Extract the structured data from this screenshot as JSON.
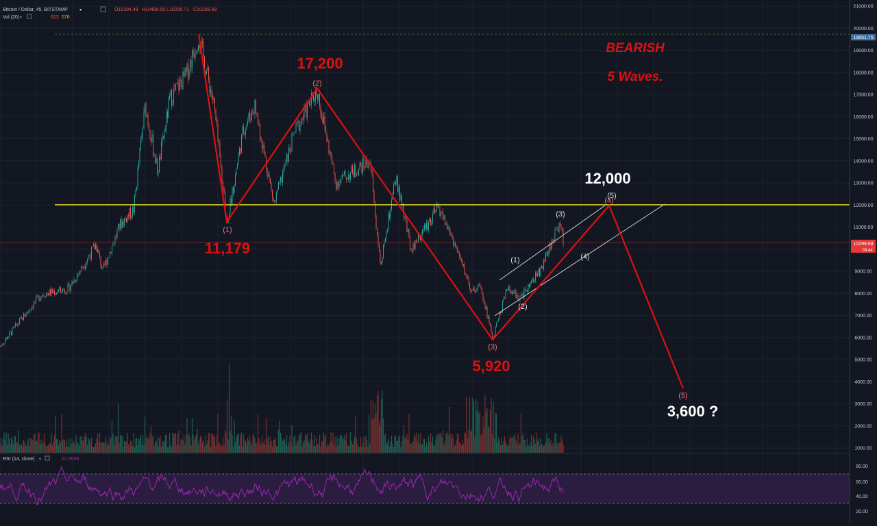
{
  "header": {
    "symbol": "Bitcoin / Dollar, 45, BITSTAMP",
    "open": "O10394.49",
    "high": "H10480.00",
    "low": "L10280.71",
    "close": "C10299.68",
    "volume_label": "Vol (20)",
    "volume_values": [
      "613",
      "576"
    ]
  },
  "rsi": {
    "label": "RSI (14, close)",
    "value": "51.8006",
    "ticks": [
      "80.00",
      "60.00",
      "40.00",
      "20.00"
    ],
    "upper_band": 70,
    "lower_band": 30
  },
  "price_axis": {
    "ticks": [
      "21000.00",
      "20000.00",
      "19000.00",
      "18000.00",
      "17000.00",
      "16000.00",
      "15000.00",
      "14000.00",
      "13000.00",
      "12000.00",
      "11000.00",
      "10000.00",
      "9000.00",
      "8000.00",
      "7000.00",
      "6000.00",
      "5000.00",
      "4000.00",
      "3000.00",
      "2000.00",
      "1000.00"
    ],
    "last_price": "10299.68",
    "ath_price": "19651.75",
    "countdown": "03:44"
  },
  "colors": {
    "background": "#131722",
    "up": "#26a69a",
    "down": "#ef5350",
    "wave": "#e01010",
    "support": "#f5e62a",
    "channel": "#d8dde8",
    "rsi_line": "#9c27b0"
  },
  "annotations": {
    "title_line1": "BEARISH",
    "title_line2": "5 Waves.",
    "p1": "11,179",
    "p2": "17,200",
    "p3": "5,920",
    "p4": "12,000",
    "p5": "3,600 ?"
  },
  "wave_labels": {
    "w1": "(1)",
    "w2": "(2)",
    "w3": "(3)",
    "w4": "(4)",
    "w5": "(5)",
    "s1": "(1)",
    "s2": "(2)",
    "s3": "(3)",
    "s4": "(4)",
    "s5": "(5)"
  },
  "chart_data": {
    "type": "line",
    "title": "Bitcoin / Dollar, 45, BITSTAMP",
    "ylim": [
      0,
      21000
    ],
    "support_level": 12000,
    "series": [
      {
        "name": "BEARISH 5 Waves.",
        "values": [
          19651,
          11179,
          17200,
          5920,
          12000,
          3600
        ]
      }
    ],
    "sub_count": [
      {
        "label": "(1)",
        "value": 9000
      },
      {
        "label": "(2)",
        "value": 7700
      },
      {
        "label": "(3)",
        "value": 11300
      },
      {
        "label": "(4)",
        "value": 9750
      },
      {
        "label": "(5)",
        "value": 12100
      }
    ]
  }
}
